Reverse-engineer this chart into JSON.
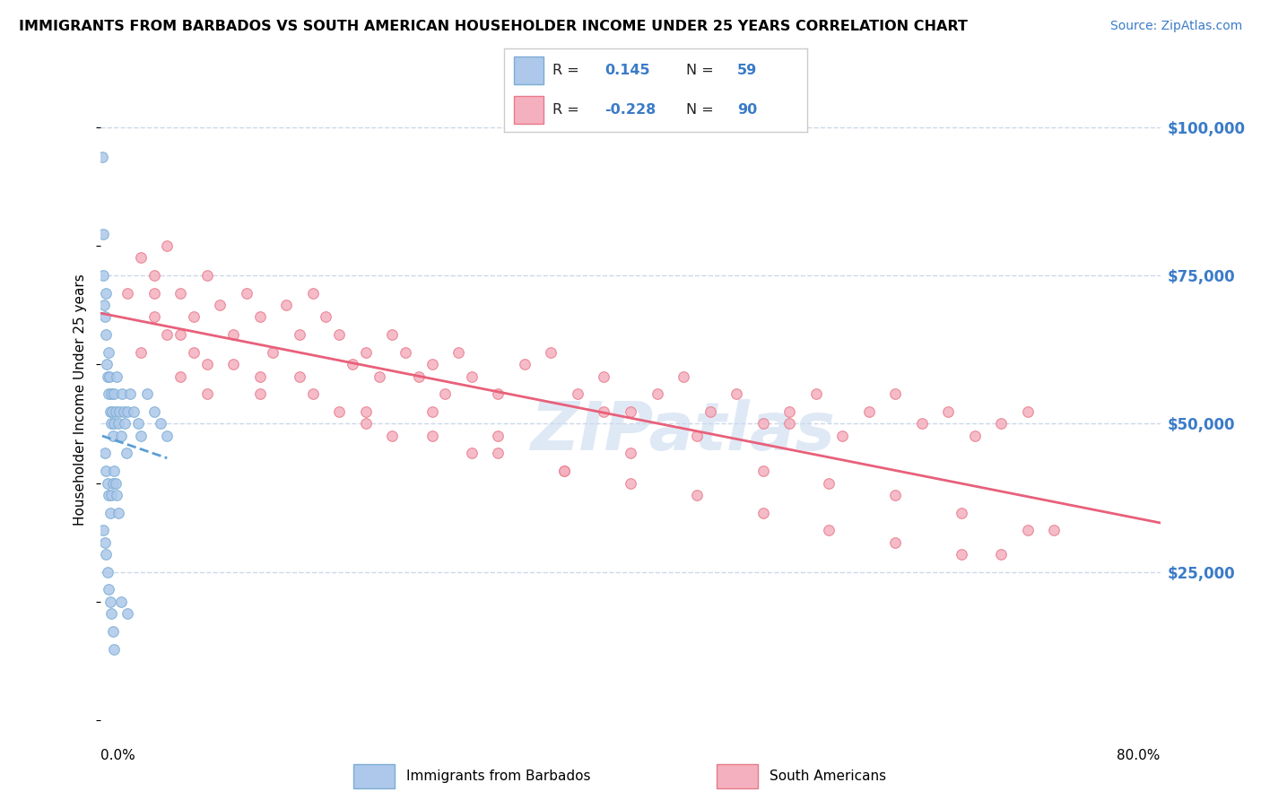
{
  "title": "IMMIGRANTS FROM BARBADOS VS SOUTH AMERICAN HOUSEHOLDER INCOME UNDER 25 YEARS CORRELATION CHART",
  "source": "Source: ZipAtlas.com",
  "ylabel": "Householder Income Under 25 years",
  "xmin": 0.0,
  "xmax": 80.0,
  "ymin": 0,
  "ymax": 108000,
  "barbados_color": "#adc8ea",
  "barbados_edge": "#7badd4",
  "southam_color": "#f4b0bf",
  "southam_edge": "#e87a8a",
  "trend_blue": "#5a9ed6",
  "trend_pink": "#e8607a",
  "R_barbados": 0.145,
  "N_barbados": 59,
  "R_southam": -0.228,
  "N_southam": 90,
  "watermark": "ZIPatlas",
  "bg_color": "#ffffff",
  "grid_color": "#ccd8ea",
  "barbados_scatter_x": [
    0.1,
    0.15,
    0.2,
    0.25,
    0.3,
    0.35,
    0.4,
    0.45,
    0.5,
    0.55,
    0.6,
    0.65,
    0.7,
    0.75,
    0.8,
    0.85,
    0.9,
    0.95,
    1.0,
    1.1,
    1.2,
    1.3,
    1.4,
    1.5,
    1.6,
    1.7,
    1.8,
    1.9,
    2.0,
    2.2,
    2.5,
    2.8,
    3.0,
    3.5,
    4.0,
    4.5,
    5.0,
    0.3,
    0.4,
    0.5,
    0.6,
    0.7,
    0.8,
    0.9,
    1.0,
    1.1,
    1.2,
    1.3,
    0.2,
    0.3,
    0.4,
    0.5,
    0.6,
    0.7,
    0.8,
    0.9,
    1.0,
    1.5,
    2.0
  ],
  "barbados_scatter_y": [
    95000,
    82000,
    75000,
    70000,
    68000,
    65000,
    72000,
    60000,
    58000,
    62000,
    55000,
    58000,
    52000,
    55000,
    50000,
    52000,
    48000,
    50000,
    55000,
    52000,
    58000,
    50000,
    52000,
    48000,
    55000,
    52000,
    50000,
    45000,
    52000,
    55000,
    52000,
    50000,
    48000,
    55000,
    52000,
    50000,
    48000,
    45000,
    42000,
    40000,
    38000,
    35000,
    38000,
    40000,
    42000,
    40000,
    38000,
    35000,
    32000,
    30000,
    28000,
    25000,
    22000,
    20000,
    18000,
    15000,
    12000,
    20000,
    18000
  ],
  "southam_scatter_x": [
    2.0,
    3.0,
    4.0,
    5.0,
    6.0,
    7.0,
    8.0,
    9.0,
    10.0,
    11.0,
    12.0,
    13.0,
    14.0,
    15.0,
    16.0,
    17.0,
    18.0,
    19.0,
    20.0,
    21.0,
    22.0,
    23.0,
    24.0,
    25.0,
    26.0,
    27.0,
    28.0,
    30.0,
    32.0,
    34.0,
    36.0,
    38.0,
    40.0,
    42.0,
    44.0,
    46.0,
    48.0,
    50.0,
    52.0,
    54.0,
    56.0,
    58.0,
    60.0,
    62.0,
    64.0,
    66.0,
    68.0,
    70.0,
    3.0,
    4.0,
    5.0,
    6.0,
    7.0,
    8.0,
    10.0,
    12.0,
    15.0,
    18.0,
    20.0,
    22.0,
    25.0,
    28.0,
    30.0,
    35.0,
    40.0,
    45.0,
    50.0,
    55.0,
    60.0,
    65.0,
    4.0,
    6.0,
    8.0,
    12.0,
    16.0,
    20.0,
    25.0,
    30.0,
    35.0,
    40.0,
    45.0,
    50.0,
    55.0,
    60.0,
    65.0,
    70.0,
    38.0,
    52.0,
    68.0,
    72.0
  ],
  "southam_scatter_y": [
    72000,
    78000,
    75000,
    80000,
    72000,
    68000,
    75000,
    70000,
    65000,
    72000,
    68000,
    62000,
    70000,
    65000,
    72000,
    68000,
    65000,
    60000,
    62000,
    58000,
    65000,
    62000,
    58000,
    60000,
    55000,
    62000,
    58000,
    55000,
    60000,
    62000,
    55000,
    58000,
    52000,
    55000,
    58000,
    52000,
    55000,
    50000,
    52000,
    55000,
    48000,
    52000,
    55000,
    50000,
    52000,
    48000,
    50000,
    52000,
    62000,
    68000,
    65000,
    58000,
    62000,
    55000,
    60000,
    55000,
    58000,
    52000,
    50000,
    48000,
    52000,
    45000,
    48000,
    42000,
    45000,
    48000,
    42000,
    40000,
    38000,
    35000,
    72000,
    65000,
    60000,
    58000,
    55000,
    52000,
    48000,
    45000,
    42000,
    40000,
    38000,
    35000,
    32000,
    30000,
    28000,
    32000,
    52000,
    50000,
    28000,
    32000
  ]
}
